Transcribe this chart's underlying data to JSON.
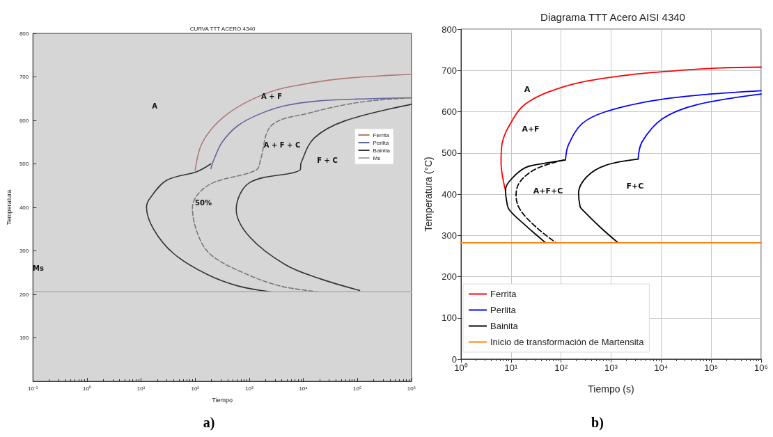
{
  "chart_data": [
    {
      "type": "line",
      "title": "CURVA TTT ACERO 4340",
      "xlabel": "Tiempo",
      "ylabel": "Temperatura",
      "log": "x",
      "legend": "right",
      "xlim": [
        0.1,
        1000000
      ],
      "xticks": [
        {
          "value": 0.1,
          "label": "10⁻¹"
        },
        {
          "value": 1,
          "label": "10⁰"
        },
        {
          "value": 10,
          "label": "10¹"
        },
        {
          "value": 100,
          "label": "10²"
        },
        {
          "value": 1000,
          "label": "10³"
        },
        {
          "value": 10000,
          "label": "10⁴"
        },
        {
          "value": 100000,
          "label": "10⁵"
        },
        {
          "value": 1000000,
          "label": "10⁶"
        }
      ],
      "ylim": [
        0,
        800
      ],
      "yticks": [
        100,
        200,
        300,
        400,
        500,
        600,
        700,
        800
      ],
      "series": [
        {
          "name": "Ferrita",
          "color": "#b07878",
          "x": [
            100,
            126,
            200,
            398,
            1000,
            3160,
            10000,
            31600,
            100000,
            316000,
            1000000
          ],
          "values": [
            485,
            540,
            580,
            615,
            645,
            670,
            683,
            693,
            699,
            703,
            706
          ]
        },
        {
          "name": "Perlita",
          "color": "#6464a0",
          "x": [
            195,
            219,
            316,
            617,
            1580,
            4680,
            20000,
            97700,
            1000000
          ],
          "values": [
            489,
            508,
            550,
            588,
            615,
            634,
            645,
            649,
            652
          ]
        },
        {
          "name": "Bainita",
          "color": "#333333",
          "x": [
            195,
            107,
            29.5,
            14.8,
            12.6,
            17,
            39.8,
            166,
            631,
            2450
          ],
          "values": [
            500,
            482,
            462,
            422,
            401,
            350,
            294,
            246,
            219,
            206
          ]
        },
        {
          "color": "#777777",
          "line_style": "dashed",
          "x": [
            1000000,
            115000,
            12900,
            2570,
            1620,
            1350,
            219,
            112,
            89,
            123,
            219,
            912,
            3800,
            18200
          ],
          "values": [
            652,
            642,
            617,
            588,
            510,
            486,
            457,
            430,
            399,
            326,
            286,
            246,
            219,
            206
          ]
        },
        {
          "color": "#333333",
          "x": [
            1000000,
            58900,
            15800,
            9120,
            8710,
            1020,
            575,
            1020,
            4680,
            21400,
            110000
          ],
          "values": [
            637,
            599,
            559,
            503,
            486,
            457,
            395,
            332,
            268,
            235,
            209
          ]
        },
        {
          "name": "Ms",
          "color": "#a8a8a8",
          "x": [
            0.1,
            1000000
          ],
          "values": [
            206,
            206
          ]
        }
      ],
      "annotations": [
        "A",
        "A + F",
        "A + F + C",
        "F + C",
        "50%",
        "Ms",
        "a)"
      ]
    },
    {
      "type": "line",
      "title": "Diagrama TTT Acero AISI 4340",
      "xlabel": "Tiempo (s)",
      "ylabel": "Temperatura (°C)",
      "log": "x",
      "legend": "bottom left",
      "grid": true,
      "xlim": [
        1,
        1000000
      ],
      "xticks": [
        {
          "value": 1,
          "label": "10⁰"
        },
        {
          "value": 10,
          "label": "10¹"
        },
        {
          "value": 100,
          "label": "10²"
        },
        {
          "value": 1000,
          "label": "10³"
        },
        {
          "value": 10000,
          "label": "10⁴"
        },
        {
          "value": 100000,
          "label": "10⁵"
        },
        {
          "value": 1000000,
          "label": "10⁶"
        }
      ],
      "ylim": [
        0,
        800
      ],
      "yticks": [
        0,
        100,
        200,
        300,
        400,
        500,
        600,
        700,
        800
      ],
      "series": [
        {
          "name": "Ferrita",
          "color": "#ff0000",
          "x": [
            7.76,
            6.31,
            6.61,
            11.2,
            19.1,
            53.7,
            263,
            2190,
            18200,
            148000,
            1000000
          ],
          "values": [
            408,
            478,
            522,
            584,
            618,
            647,
            672,
            689,
            699,
            706,
            708
          ]
        },
        {
          "name": "Perlita",
          "color": "#0000ff",
          "x": [
            123,
            141,
            263,
            776,
            6310,
            52500,
            1000000
          ],
          "values": [
            485,
            520,
            571,
            600,
            626,
            640,
            651
          ]
        },
        {
          "color": "#0000ff",
          "x": [
            3470,
            4170,
            10700,
            52500,
            1000000
          ],
          "values": [
            485,
            527,
            583,
            617,
            643
          ]
        },
        {
          "name": "Bainita",
          "color": "#000000",
          "x": [
            123,
            53.7,
            19.1,
            9.12,
            7.76,
            8.13,
            9.12,
            19.1,
            49
          ],
          "values": [
            483,
            476,
            464,
            430,
            408,
            385,
            363,
            325,
            282
          ]
        },
        {
          "color": "#000000",
          "line_style": "dashed",
          "x": [
            115,
            32.4,
            15.1,
            12.6,
            15.1,
            32.4,
            79.4
          ],
          "values": [
            483,
            462,
            430,
            397,
            363,
            319,
            282
          ]
        },
        {
          "color": "#000000",
          "x": [
            3470,
            776,
            331,
            224,
            240,
            263,
            617,
            1380
          ],
          "values": [
            485,
            470,
            443,
            403,
            370,
            363,
            319,
            282
          ]
        },
        {
          "name": "Inicio de transformación de Martensita",
          "color": "#ff7f0e",
          "x": [
            1,
            1000000
          ],
          "values": [
            282,
            282
          ]
        }
      ],
      "annotations": [
        "A",
        "A+F",
        "A+F+C",
        "F+C",
        "b)"
      ]
    }
  ]
}
